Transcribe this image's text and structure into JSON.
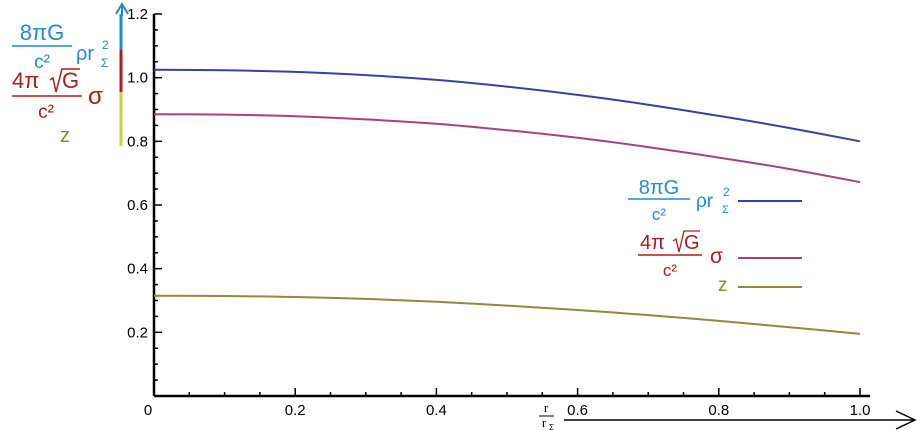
{
  "chart_data": {
    "type": "line",
    "x": [
      0.0,
      0.1,
      0.2,
      0.3,
      0.4,
      0.5,
      0.6,
      0.7,
      0.8,
      0.9,
      1.0
    ],
    "series": [
      {
        "name": "8πG/c² ρr_Σ²",
        "color": "#3a3fa6",
        "values": [
          1.025,
          1.023,
          1.018,
          1.008,
          0.993,
          0.972,
          0.946,
          0.915,
          0.88,
          0.842,
          0.8
        ]
      },
      {
        "name": "4π√G/c² σ",
        "color": "#a8427a",
        "values": [
          0.885,
          0.884,
          0.879,
          0.869,
          0.855,
          0.835,
          0.811,
          0.782,
          0.749,
          0.713,
          0.672
        ]
      },
      {
        "name": "z",
        "color": "#8f8a3c",
        "values": [
          0.315,
          0.314,
          0.311,
          0.305,
          0.296,
          0.284,
          0.27,
          0.254,
          0.236,
          0.216,
          0.195
        ]
      }
    ],
    "xlim": [
      0,
      1.0
    ],
    "ylim": [
      0,
      1.2
    ],
    "xticks": [
      "0",
      "0.2",
      "0.4",
      "0.6",
      "0.8",
      "1.0"
    ],
    "yticks": [
      "0.2",
      "0.4",
      "0.6",
      "0.8",
      "1.0",
      "1.2"
    ],
    "xlabel": {
      "num": "r",
      "den": "r",
      "den_sub": "Σ"
    },
    "ylabel": {
      "rho": {
        "num": "8πG",
        "den": "c²",
        "rest": "ρr",
        "sup": "2",
        "sub": "Σ"
      },
      "sigma": {
        "num": "4π",
        "sqrt": "G",
        "den": "c²",
        "rest": "σ"
      },
      "z": "z"
    },
    "legend": {
      "position": "right-middle",
      "rho": {
        "num": "8πG",
        "den": "c²",
        "rest": "ρr",
        "sup": "2",
        "sub": "Σ"
      },
      "sigma": {
        "num": "4π",
        "sqrt": "G",
        "den": "c²",
        "rest": "σ"
      },
      "z": "z"
    },
    "colors": {
      "rho_label": "#1f8ccf",
      "sigma_label": "#b01c1c",
      "z_label": "#8a8a2a",
      "axis": "#000000",
      "arrow_top": "#1f8ccf",
      "bar_rho": "#1f8ccf",
      "bar_sigma": "#b01c1c",
      "bar_z": "#c8d43a"
    },
    "grid": false
  }
}
